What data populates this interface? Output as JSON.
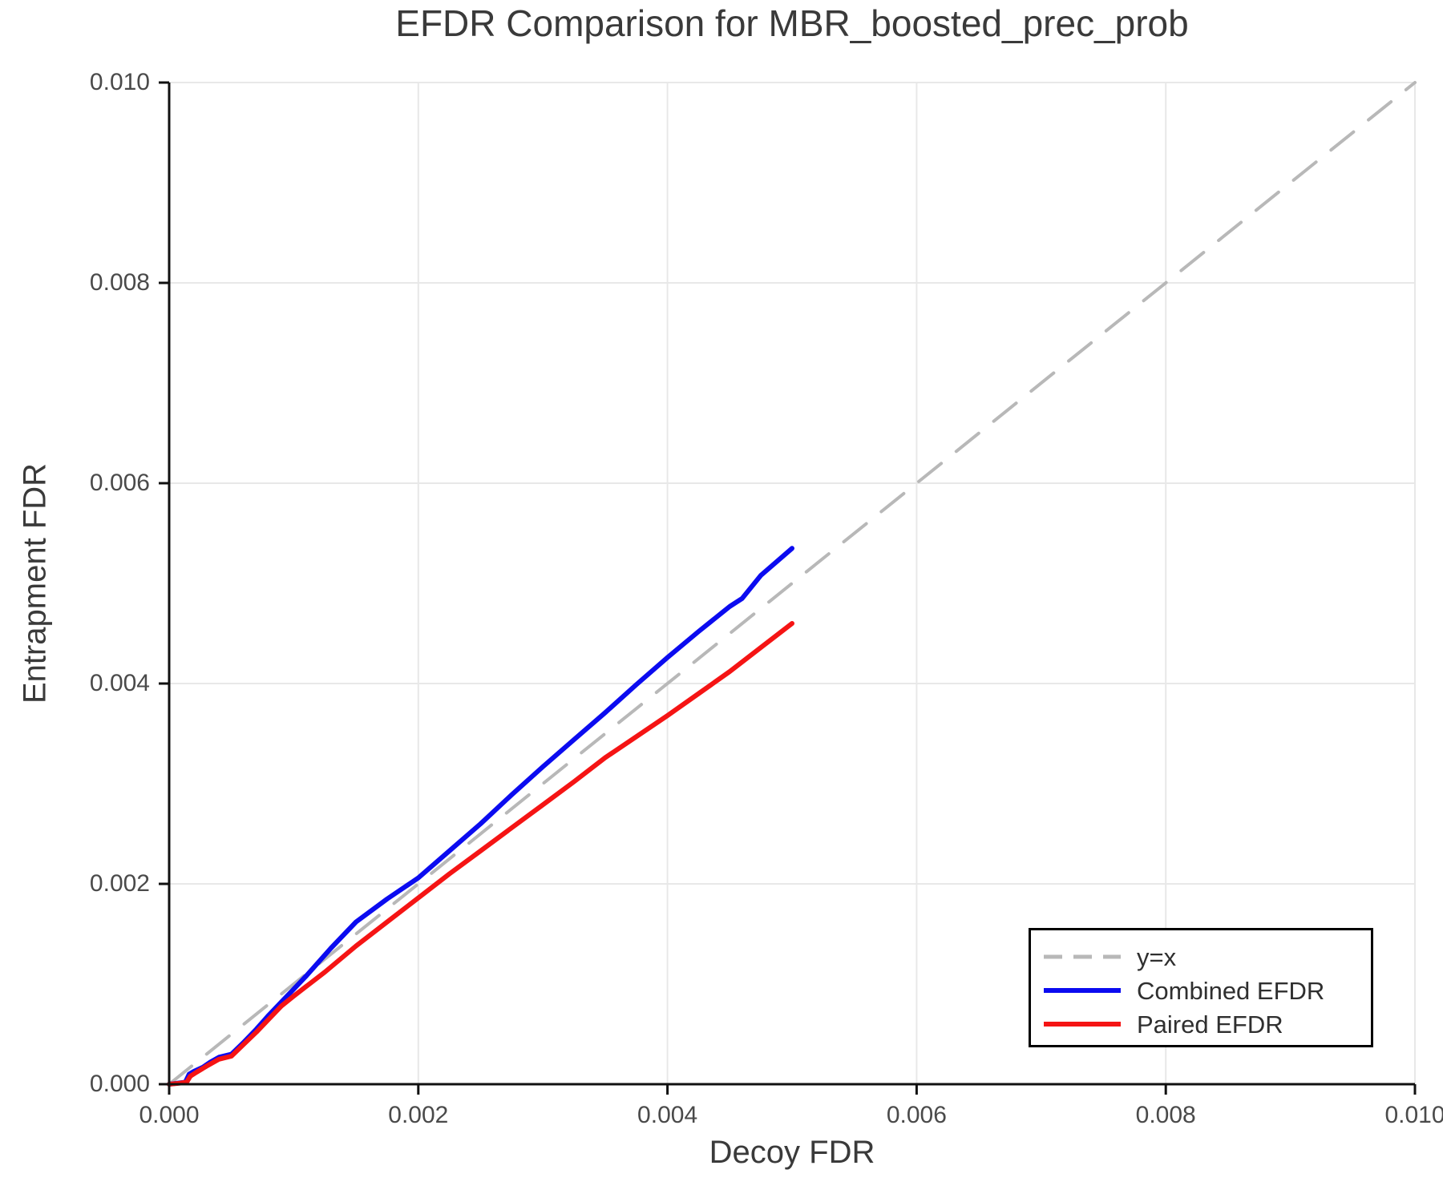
{
  "chart_data": {
    "type": "line",
    "title": "EFDR Comparison for MBR_boosted_prec_prob",
    "xlabel": "Decoy FDR",
    "ylabel": "Entrapment FDR",
    "xlim": [
      0.0,
      0.01
    ],
    "ylim": [
      0.0,
      0.01
    ],
    "grid": true,
    "x_ticks": {
      "values": [
        0.0,
        0.002,
        0.004,
        0.006,
        0.008,
        0.01
      ],
      "labels": [
        "0.000",
        "0.002",
        "0.004",
        "0.006",
        "0.008",
        "0.010"
      ]
    },
    "y_ticks": {
      "values": [
        0.0,
        0.002,
        0.004,
        0.006,
        0.008,
        0.01
      ],
      "labels": [
        "0.000",
        "0.002",
        "0.004",
        "0.006",
        "0.008",
        "0.010"
      ]
    },
    "legend": {
      "position": "lower right",
      "framed": true
    },
    "colors": {
      "grid": "#e8e8e8",
      "spine": "#111111",
      "reference": "#b8b8b8",
      "combined": "#0b0bf0",
      "paired": "#f51414"
    },
    "series": [
      {
        "name": "y=x",
        "style": "dashed",
        "color": "#b8b8b8",
        "points": [
          [
            0.0,
            0.0
          ],
          [
            0.01,
            0.01
          ]
        ]
      },
      {
        "name": "Combined EFDR",
        "style": "solid",
        "color": "#0b0bf0",
        "points": [
          [
            0.0,
            0.0
          ],
          [
            6e-05,
            1e-05
          ],
          [
            0.00013,
            2e-05
          ],
          [
            0.00016,
            0.0001
          ],
          [
            0.0002,
            0.00013
          ],
          [
            0.00027,
            0.00017
          ],
          [
            0.00033,
            0.00022
          ],
          [
            0.0004,
            0.00027
          ],
          [
            0.0005,
            0.0003
          ],
          [
            0.0006,
            0.00042
          ],
          [
            0.0007,
            0.00055
          ],
          [
            0.0008,
            0.00069
          ],
          [
            0.0009,
            0.00082
          ],
          [
            0.001,
            0.00095
          ],
          [
            0.0011,
            0.00108
          ],
          [
            0.0013,
            0.00136
          ],
          [
            0.0015,
            0.00162
          ],
          [
            0.00175,
            0.00185
          ],
          [
            0.002,
            0.00206
          ],
          [
            0.00225,
            0.00233
          ],
          [
            0.0025,
            0.0026
          ],
          [
            0.00275,
            0.00289
          ],
          [
            0.003,
            0.00317
          ],
          [
            0.00325,
            0.00344
          ],
          [
            0.0035,
            0.00371
          ],
          [
            0.00375,
            0.00399
          ],
          [
            0.004,
            0.00426
          ],
          [
            0.00425,
            0.00452
          ],
          [
            0.0045,
            0.00477
          ],
          [
            0.0046,
            0.00485
          ],
          [
            0.00475,
            0.00508
          ],
          [
            0.005,
            0.00535
          ]
        ]
      },
      {
        "name": "Paired EFDR",
        "style": "solid",
        "color": "#f51414",
        "points": [
          [
            0.0,
            0.0
          ],
          [
            8e-05,
            1e-05
          ],
          [
            0.00014,
            2e-05
          ],
          [
            0.00017,
            8e-05
          ],
          [
            0.00022,
            0.00012
          ],
          [
            0.0003,
            0.00018
          ],
          [
            0.0004,
            0.00025
          ],
          [
            0.0005,
            0.00028
          ],
          [
            0.0006,
            0.0004
          ],
          [
            0.0007,
            0.00052
          ],
          [
            0.0008,
            0.00065
          ],
          [
            0.0009,
            0.00078
          ],
          [
            0.001,
            0.00088
          ],
          [
            0.00125,
            0.00112
          ],
          [
            0.0015,
            0.00138
          ],
          [
            0.00175,
            0.00162
          ],
          [
            0.002,
            0.00186
          ],
          [
            0.00225,
            0.0021
          ],
          [
            0.0025,
            0.00233
          ],
          [
            0.00275,
            0.00256
          ],
          [
            0.003,
            0.00279
          ],
          [
            0.00325,
            0.00302
          ],
          [
            0.0035,
            0.00326
          ],
          [
            0.00375,
            0.00347
          ],
          [
            0.004,
            0.00368
          ],
          [
            0.00425,
            0.0039
          ],
          [
            0.0045,
            0.00412
          ],
          [
            0.00475,
            0.00436
          ],
          [
            0.005,
            0.0046
          ]
        ]
      }
    ]
  }
}
